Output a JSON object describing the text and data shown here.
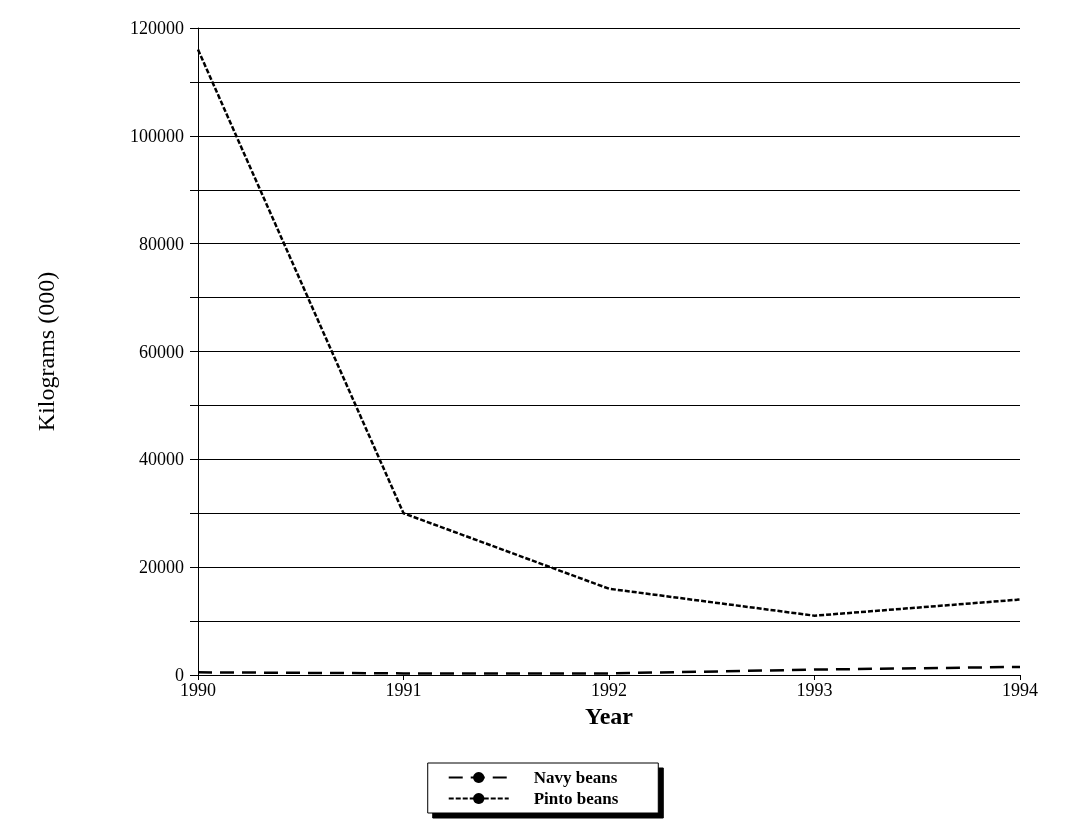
{
  "chart_data": {
    "type": "line",
    "xlabel": "Year",
    "ylabel": "Kilograms (000)",
    "x": [
      1990,
      1991,
      1992,
      1993,
      1994
    ],
    "xlim": [
      1990,
      1994
    ],
    "xticks": [
      1990,
      1991,
      1992,
      1993,
      1994
    ],
    "ylim": [
      0,
      120000
    ],
    "yticks": [
      0,
      20000,
      40000,
      60000,
      80000,
      100000,
      120000
    ],
    "grid": "y",
    "legend": "bottom",
    "marker": "none",
    "series": [
      {
        "name": "Navy beans",
        "color": "#000000",
        "line_style": "dashed",
        "values": [
          500,
          300,
          300,
          1000,
          1500
        ]
      },
      {
        "name": "Pinto beans",
        "color": "#000000",
        "line_style": "dotted",
        "values": [
          116000,
          30000,
          16000,
          11000,
          14000
        ]
      }
    ]
  }
}
